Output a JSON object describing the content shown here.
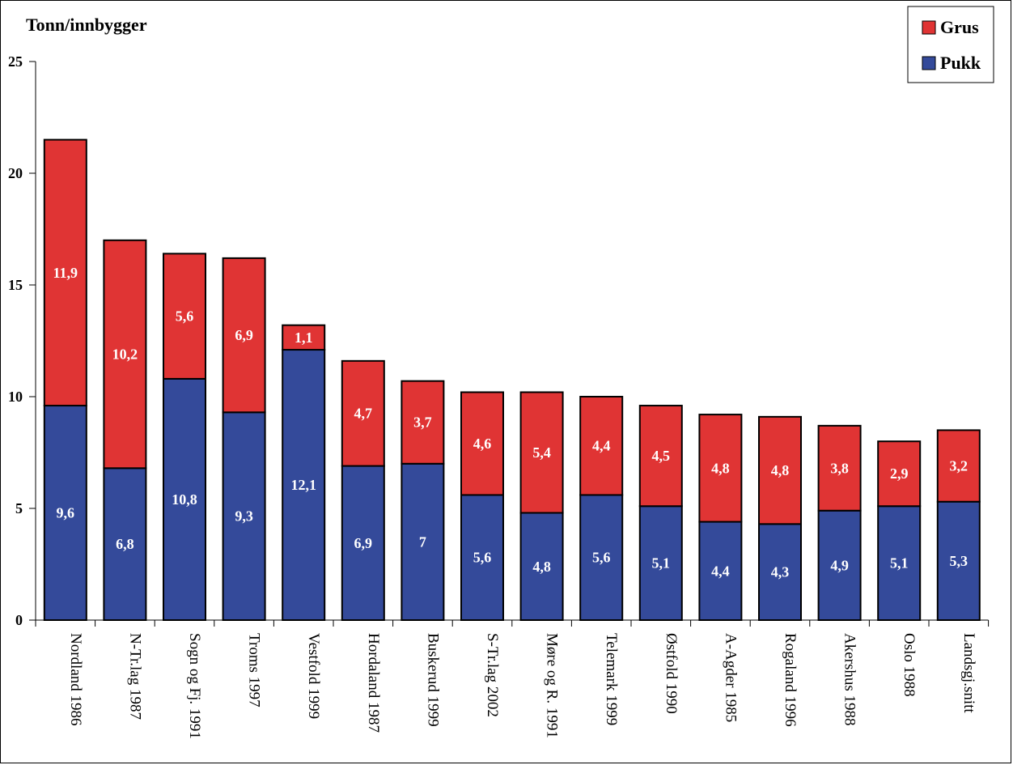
{
  "chart_data": {
    "type": "bar",
    "stacked": true,
    "ylabel": "Tonn/innbygger",
    "ylim": [
      0,
      25
    ],
    "yticks": [
      0,
      5,
      10,
      15,
      20,
      25
    ],
    "categories": [
      "Nordland 1986",
      "N-Tr.lag 1987",
      "Sogn og Fj. 1991",
      "Troms 1997",
      "Vestfold 1999",
      "Hordaland 1987",
      "Buskerud 1999",
      "S-Tr.lag 2002",
      "Møre og R. 1991",
      "Telemark 1999",
      "Østfold 1990",
      "A-Agder 1985",
      "Rogaland 1996",
      "Akershus 1988",
      "Oslo 1988",
      "Landsgj.snitt"
    ],
    "series": [
      {
        "name": "Pukk",
        "color": "#344a9a",
        "values": [
          9.6,
          6.8,
          10.8,
          9.3,
          12.1,
          6.9,
          7,
          5.6,
          4.8,
          5.6,
          5.1,
          4.4,
          4.3,
          4.9,
          5.1,
          5.3
        ],
        "labels": [
          "9,6",
          "6,8",
          "10,8",
          "9,3",
          "12,1",
          "6,9",
          "7",
          "5,6",
          "4,8",
          "5,6",
          "5,1",
          "4,4",
          "4,3",
          "4,9",
          "5,1",
          "5,3"
        ]
      },
      {
        "name": "Grus",
        "color": "#e03434",
        "values": [
          11.9,
          10.2,
          5.6,
          6.9,
          1.1,
          4.7,
          3.7,
          4.6,
          5.4,
          4.4,
          4.5,
          4.8,
          4.8,
          3.8,
          2.9,
          3.2
        ],
        "labels": [
          "11,9",
          "10,2",
          "5,6",
          "6,9",
          "1,1",
          "4,7",
          "3,7",
          "4,6",
          "5,4",
          "4,4",
          "4,5",
          "4,8",
          "4,8",
          "3,8",
          "2,9",
          "3,2"
        ]
      }
    ],
    "legend": {
      "position": "top-right",
      "order": [
        "Grus",
        "Pukk"
      ]
    },
    "grid": false
  }
}
